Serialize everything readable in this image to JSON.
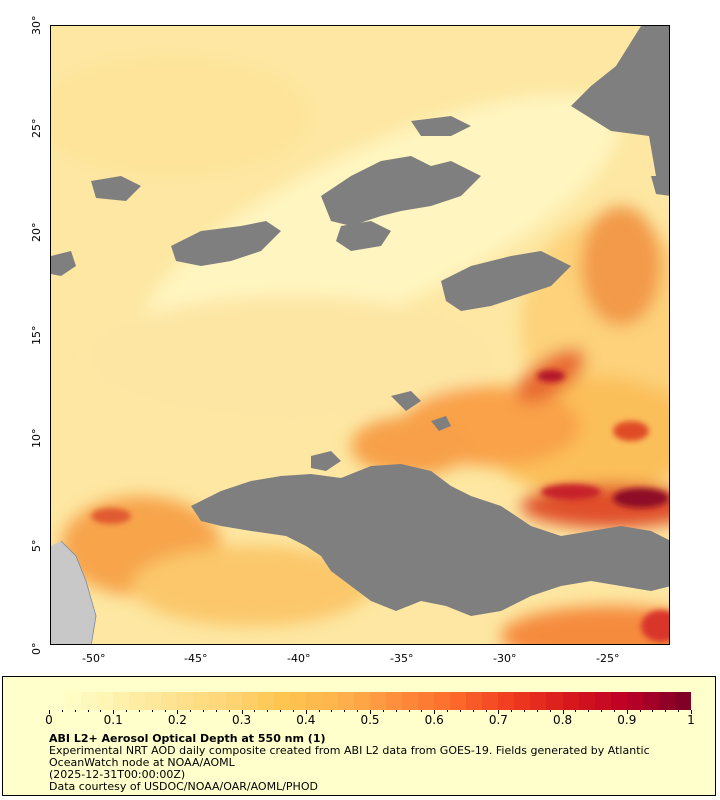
{
  "map": {
    "x_ticks": [
      "-50°",
      "-45°",
      "-40°",
      "-35°",
      "-30°",
      "-25°"
    ],
    "y_ticks": [
      "0°",
      "5°",
      "10°",
      "15°",
      "20°",
      "25°",
      "30°"
    ],
    "colors": {
      "no_data": "#7f7f7f",
      "land": "#c8c8c8",
      "base": "#fde9a0"
    }
  },
  "legend": {
    "ticks": [
      "0",
      "0.1",
      "0.2",
      "0.3",
      "0.4",
      "0.5",
      "0.6",
      "0.7",
      "0.8",
      "0.9",
      "1"
    ],
    "colors": [
      "#ffffcc",
      "#fff3b0",
      "#fee391",
      "#fed676",
      "#fec44f",
      "#feb24c",
      "#fd8d3c",
      "#fc6a2a",
      "#f03b20",
      "#d7191c",
      "#bd0026",
      "#800026"
    ],
    "title": "ABI L2+ Aerosol Optical Depth at 550 nm (1)",
    "line1": "Experimental NRT AOD daily composite created from ABI L2 data from GOES-19. Fields generated by Atlantic",
    "line2": "OceanWatch node at NOAA/AOML",
    "line3": "(2025-12-31T00:00:00Z)",
    "line4": "Data courtesy of USDOC/NOAA/OAR/AOML/PHOD"
  }
}
